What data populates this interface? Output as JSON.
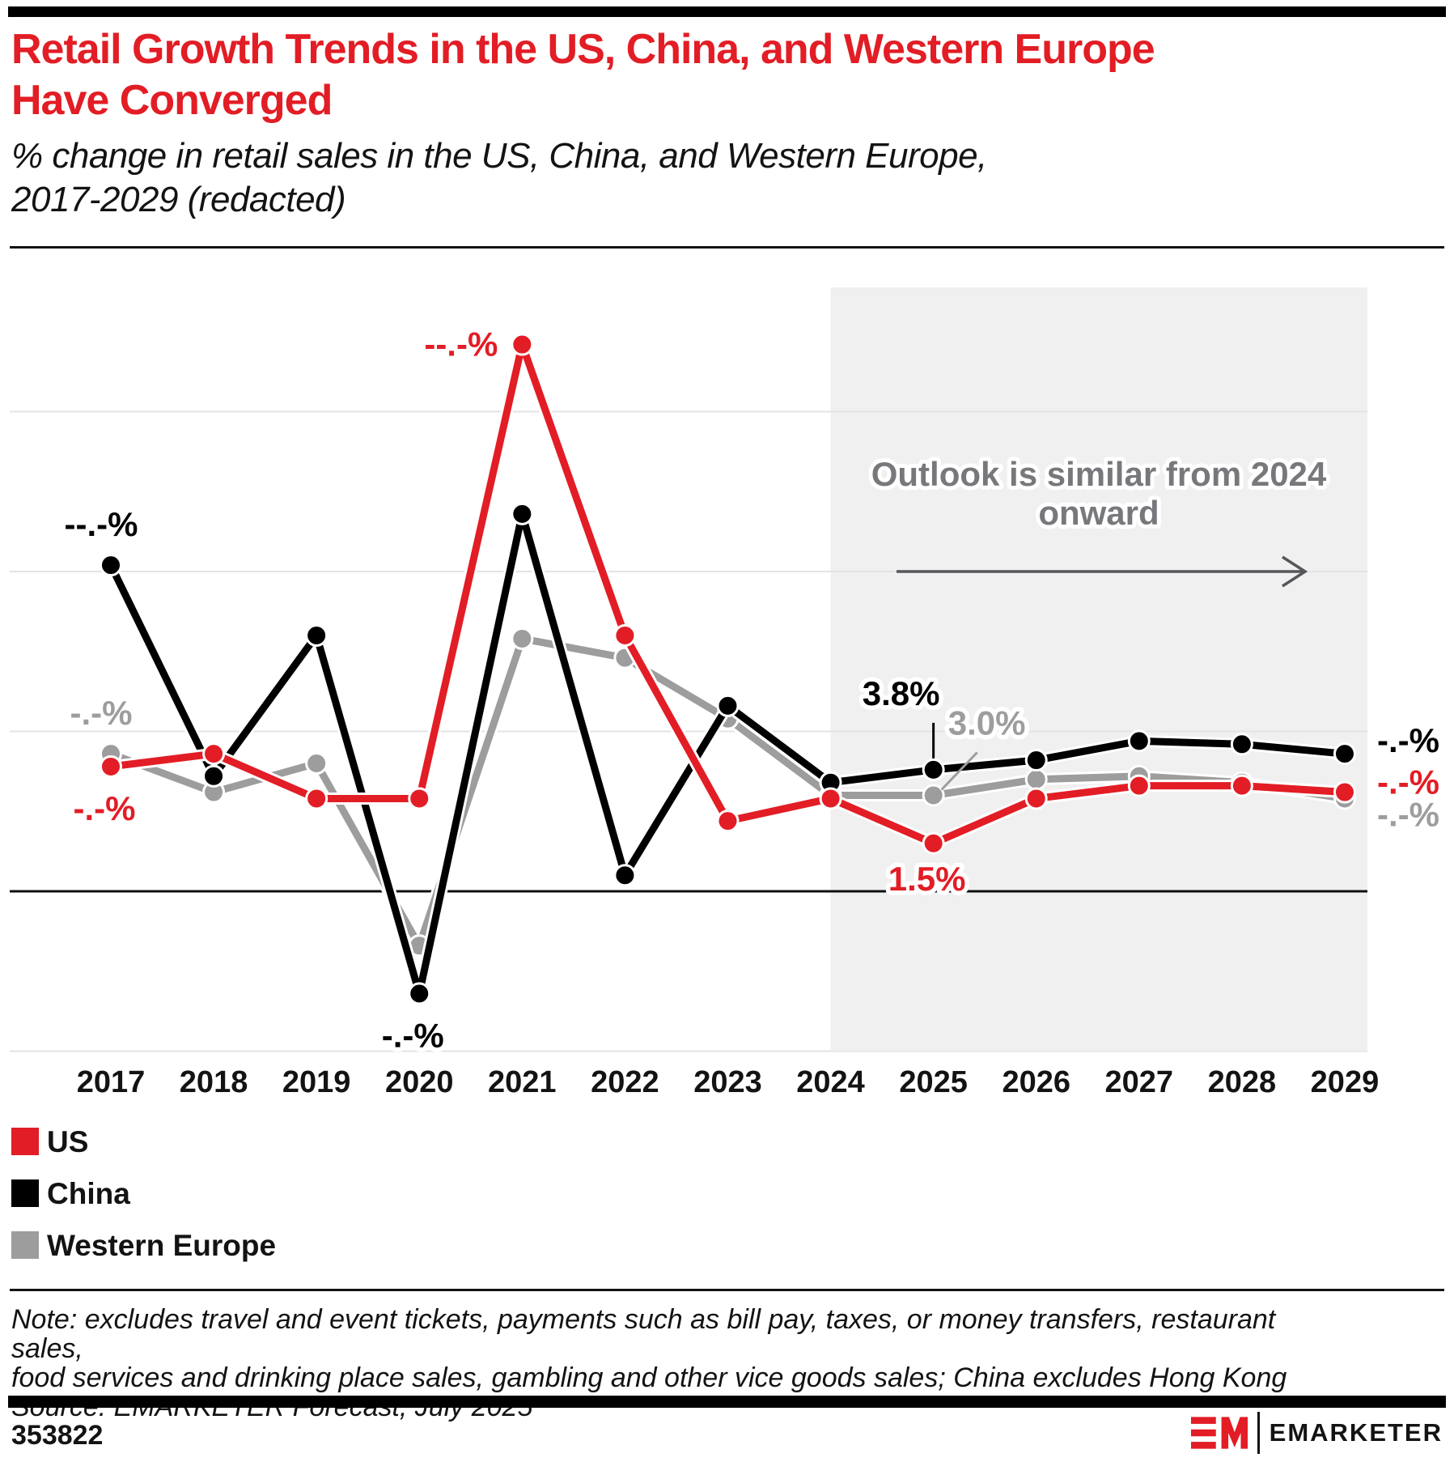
{
  "header": {
    "title_lines": [
      "Retail Growth Trends in the US, China, and Western Europe",
      "Have Converged"
    ],
    "subtitle_lines": [
      "% change in retail sales in the US, China, and Western Europe,",
      "2017-2029 (redacted)"
    ],
    "title_color": "#e21d25"
  },
  "chart_data": {
    "type": "line",
    "title": "Retail Growth Trends in the US, China, and Western Europe Have Converged",
    "subtitle": "% change in retail sales in the US, China, and Western Europe, 2017-2029 (redacted)",
    "unit": "%",
    "x": [
      2017,
      2018,
      2019,
      2020,
      2021,
      2022,
      2023,
      2024,
      2025,
      2026,
      2027,
      2028,
      2029
    ],
    "series": [
      {
        "name": "US",
        "color": "#e21d25",
        "values": [
          3.9,
          4.3,
          2.9,
          2.9,
          17.1,
          8.0,
          2.2,
          2.9,
          1.5,
          2.9,
          3.3,
          3.3,
          3.1
        ]
      },
      {
        "name": "China",
        "color": "#000000",
        "values": [
          10.2,
          3.6,
          8.0,
          -3.2,
          11.8,
          0.5,
          5.8,
          3.4,
          3.8,
          4.1,
          4.7,
          4.6,
          4.3
        ]
      },
      {
        "name": "Western Europe",
        "color": "#9d9d9d",
        "values": [
          4.3,
          3.1,
          4.0,
          -1.7,
          7.9,
          7.3,
          5.4,
          3.0,
          3.0,
          3.5,
          3.6,
          3.4,
          2.9
        ]
      }
    ],
    "values_estimated_from_pixels": true,
    "ylim": [
      -5,
      19
    ],
    "gridlines_at": [
      15,
      10,
      5,
      -5
    ],
    "zero_axis": true,
    "grid_color": "#e3e3e3",
    "zero_axis_color": "#101010",
    "forecast": {
      "start_year": 2024,
      "shade_color": "#f0f0f1",
      "note_lines": [
        "Outlook is similar from 2024",
        "onward"
      ],
      "note_color": "#77787b",
      "arrow_color": "#55565a"
    },
    "point_labels": [
      {
        "series": "China",
        "year": 2017,
        "text": "--.-%",
        "placement": "above"
      },
      {
        "series": "Western Europe",
        "year": 2017,
        "text": "-.-%",
        "placement": "above"
      },
      {
        "series": "US",
        "year": 2017,
        "text": "-.-%",
        "placement": "below"
      },
      {
        "series": "US",
        "year": 2021,
        "text": "--.-%",
        "placement": "left"
      },
      {
        "series": "China",
        "year": 2020,
        "text": "-.-%",
        "placement": "below"
      },
      {
        "series": "China",
        "year": 2025,
        "text": "3.8%",
        "placement": "callout-vertical"
      },
      {
        "series": "Western Europe",
        "year": 2025,
        "text": "3.0%",
        "placement": "callout-diagonal"
      },
      {
        "series": "US",
        "year": 2025,
        "text": "1.5%",
        "placement": "below",
        "dy": 58
      },
      {
        "series": "China",
        "year": 2029,
        "text": "-.-%",
        "placement": "right",
        "dy": -2
      },
      {
        "series": "US",
        "year": 2029,
        "text": "-.-%",
        "placement": "right",
        "dy": 2
      },
      {
        "series": "Western Europe",
        "year": 2029,
        "text": "-.-%",
        "placement": "right",
        "dy": 34
      }
    ],
    "legend_position": "bottom-left"
  },
  "legend": {
    "items": [
      {
        "label": "US",
        "color": "#e21d25"
      },
      {
        "label": "China",
        "color": "#000000"
      },
      {
        "label": "Western Europe",
        "color": "#9d9d9d"
      }
    ]
  },
  "footer": {
    "note_lines": [
      "Note: excludes travel and event tickets, payments such as bill pay, taxes, or money transfers, restaurant sales,",
      "food services and drinking place sales, gambling and other vice goods sales; China excludes Hong Kong"
    ],
    "source": "Source: EMARKETER Forecast, July 2025",
    "chart_id": "353822",
    "logo_text": "EMARKETER",
    "logo_mark": "EM",
    "logo_mark_color": "#e21d25"
  }
}
